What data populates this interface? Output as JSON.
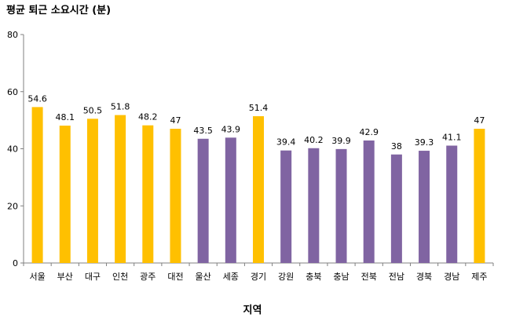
{
  "chart_data": {
    "type": "bar",
    "title": "평균 퇴근 소요시간 (분)",
    "xlabel": "지역",
    "ylabel": "",
    "ylim": [
      0,
      80
    ],
    "yticks": [
      0,
      20,
      40,
      60,
      80
    ],
    "grid": false,
    "legend": "none",
    "categories": [
      "서울",
      "부산",
      "대구",
      "인천",
      "광주",
      "대전",
      "울산",
      "세종",
      "경기",
      "강원",
      "충북",
      "충남",
      "전북",
      "전남",
      "경북",
      "경남",
      "제주"
    ],
    "values": [
      54.6,
      48.1,
      50.5,
      51.8,
      48.2,
      47,
      43.5,
      43.9,
      51.4,
      39.4,
      40.2,
      39.9,
      42.9,
      38,
      39.3,
      41.1,
      47
    ],
    "data_labels": [
      "54.6",
      "48.1",
      "50.5",
      "51.8",
      "48.2",
      "47",
      "43.5",
      "43.9",
      "51.4",
      "39.4",
      "40.2",
      "39.9",
      "42.9",
      "38",
      "39.3",
      "41.1",
      "47"
    ],
    "bar_colors": [
      "#FFC000",
      "#FFC000",
      "#FFC000",
      "#FFC000",
      "#FFC000",
      "#FFC000",
      "#8064A2",
      "#8064A2",
      "#FFC000",
      "#8064A2",
      "#8064A2",
      "#8064A2",
      "#8064A2",
      "#8064A2",
      "#8064A2",
      "#8064A2",
      "#FFC000"
    ]
  },
  "colors": {
    "highlight": "#FFC000",
    "other": "#8064A2",
    "axis": "#808080"
  }
}
